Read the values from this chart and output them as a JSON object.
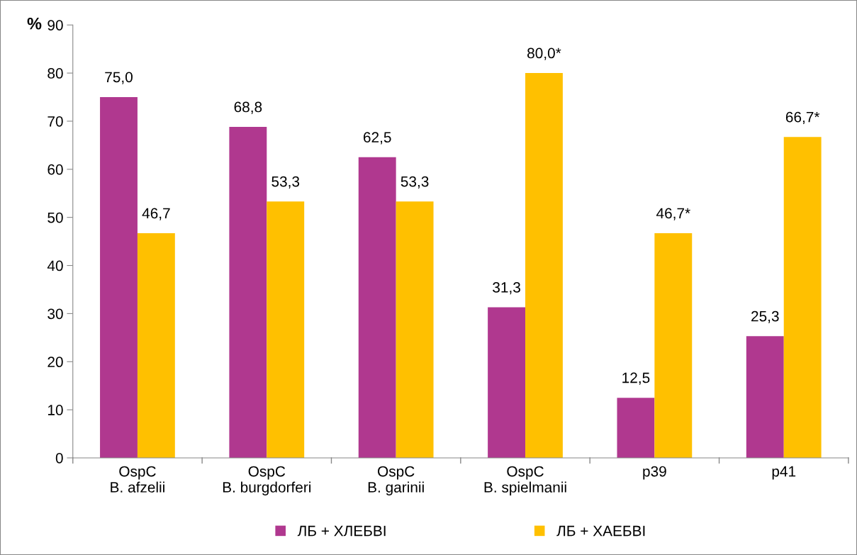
{
  "chart_data": {
    "type": "bar",
    "ylabel": "%",
    "categories": [
      "OspC\nB. afzelii",
      "OspC\nB. burgdorferi",
      "OspC\nB. garinii",
      "OspC\nB. spielmanii",
      "p39",
      "p41"
    ],
    "series": [
      {
        "name": "ЛБ + ХЛЕБВІ",
        "color": "#b0388f",
        "values": [
          75.0,
          68.8,
          62.5,
          31.3,
          12.5,
          25.3
        ],
        "value_labels": [
          "75,0",
          "68,8",
          "62,5",
          "31,3",
          "12,5",
          "25,3"
        ]
      },
      {
        "name": "ЛБ + ХАЕБВІ",
        "color": "#ffc000",
        "values": [
          46.7,
          53.3,
          53.3,
          80.0,
          46.7,
          66.7
        ],
        "value_labels": [
          "46,7",
          "53,3",
          "53,3",
          "80,0*",
          "46,7*",
          "66,7*"
        ]
      }
    ],
    "ylim": [
      0,
      90
    ],
    "yticks": [
      0,
      10,
      20,
      30,
      40,
      50,
      60,
      70,
      80,
      90
    ],
    "grid": false,
    "legend": "bottom"
  }
}
